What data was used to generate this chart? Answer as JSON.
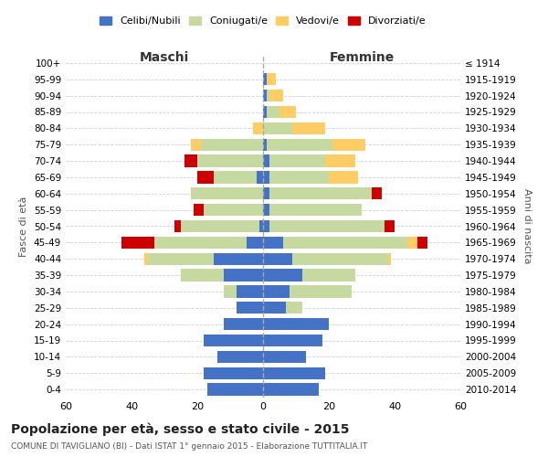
{
  "age_groups_bottom_to_top": [
    "0-4",
    "5-9",
    "10-14",
    "15-19",
    "20-24",
    "25-29",
    "30-34",
    "35-39",
    "40-44",
    "45-49",
    "50-54",
    "55-59",
    "60-64",
    "65-69",
    "70-74",
    "75-79",
    "80-84",
    "85-89",
    "90-94",
    "95-99",
    "100+"
  ],
  "birth_years_bottom_to_top": [
    "2010-2014",
    "2005-2009",
    "2000-2004",
    "1995-1999",
    "1990-1994",
    "1985-1989",
    "1980-1984",
    "1975-1979",
    "1970-1974",
    "1965-1969",
    "1960-1964",
    "1955-1959",
    "1950-1954",
    "1945-1949",
    "1940-1944",
    "1935-1939",
    "1930-1934",
    "1925-1929",
    "1920-1924",
    "1915-1919",
    "≤ 1914"
  ],
  "males": {
    "celibi": [
      17,
      18,
      14,
      18,
      12,
      8,
      8,
      12,
      15,
      5,
      1,
      0,
      0,
      2,
      0,
      0,
      0,
      0,
      0,
      0,
      0
    ],
    "coniugati": [
      0,
      0,
      0,
      0,
      0,
      0,
      4,
      13,
      20,
      28,
      24,
      18,
      22,
      13,
      20,
      19,
      0,
      0,
      0,
      0,
      0
    ],
    "vedovi": [
      0,
      0,
      0,
      0,
      0,
      0,
      0,
      0,
      1,
      0,
      0,
      0,
      0,
      0,
      0,
      3,
      3,
      0,
      0,
      0,
      0
    ],
    "divorziati": [
      0,
      0,
      0,
      0,
      0,
      0,
      0,
      0,
      0,
      10,
      2,
      3,
      0,
      5,
      4,
      0,
      0,
      0,
      0,
      0,
      0
    ]
  },
  "females": {
    "nubili": [
      17,
      19,
      13,
      18,
      20,
      7,
      8,
      12,
      9,
      6,
      2,
      2,
      2,
      2,
      2,
      1,
      0,
      1,
      1,
      1,
      0
    ],
    "coniugate": [
      0,
      0,
      0,
      0,
      0,
      5,
      19,
      16,
      29,
      38,
      35,
      28,
      31,
      18,
      17,
      20,
      9,
      4,
      1,
      0,
      0
    ],
    "vedove": [
      0,
      0,
      0,
      0,
      0,
      0,
      0,
      0,
      1,
      3,
      0,
      0,
      0,
      9,
      9,
      10,
      10,
      5,
      4,
      3,
      0
    ],
    "divorziate": [
      0,
      0,
      0,
      0,
      0,
      0,
      0,
      0,
      0,
      3,
      3,
      0,
      3,
      0,
      0,
      0,
      0,
      0,
      0,
      0,
      0
    ]
  },
  "colors": {
    "celibi": "#4472C4",
    "coniugati": "#C5D9A0",
    "vedovi": "#FFCC66",
    "divorziati": "#CC0000"
  },
  "xlim": 60,
  "title": "Popolazione per età, sesso e stato civile - 2015",
  "subtitle": "COMUNE DI TAVIGLIANO (BI) - Dati ISTAT 1° gennaio 2015 - Elaborazione TUTTITALIA.IT",
  "ylabel_left": "Fasce di età",
  "ylabel_right": "Anni di nascita",
  "xlabel_maschi": "Maschi",
  "xlabel_femmine": "Femmine",
  "legend_labels": [
    "Celibi/Nubili",
    "Coniugati/e",
    "Vedovi/e",
    "Divorziati/e"
  ],
  "bg_color": "#ffffff",
  "grid_color": "#cccccc"
}
